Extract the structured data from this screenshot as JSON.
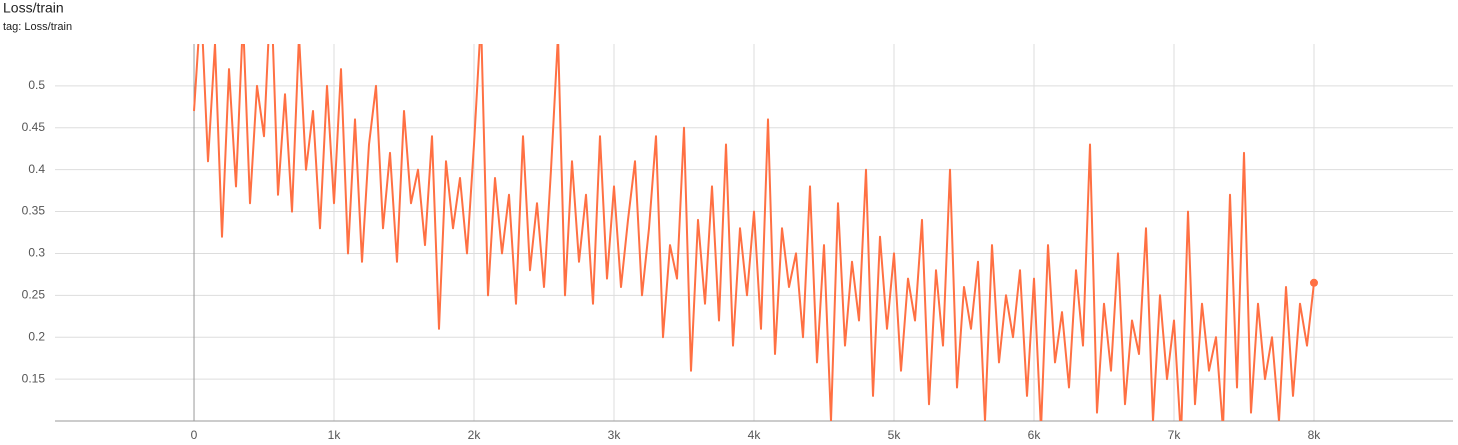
{
  "chart_data": {
    "type": "line",
    "title": "Loss/train",
    "subtitle": "tag: Loss/train",
    "x": [
      0,
      50,
      100,
      150,
      200,
      250,
      300,
      350,
      400,
      450,
      500,
      550,
      600,
      650,
      700,
      750,
      800,
      850,
      900,
      950,
      1000,
      1050,
      1100,
      1150,
      1200,
      1250,
      1300,
      1350,
      1400,
      1450,
      1500,
      1550,
      1600,
      1650,
      1700,
      1750,
      1800,
      1850,
      1900,
      1950,
      2000,
      2050,
      2100,
      2150,
      2200,
      2250,
      2300,
      2350,
      2400,
      2450,
      2500,
      2550,
      2600,
      2650,
      2700,
      2750,
      2800,
      2850,
      2900,
      2950,
      3000,
      3050,
      3100,
      3150,
      3200,
      3250,
      3300,
      3350,
      3400,
      3450,
      3500,
      3550,
      3600,
      3650,
      3700,
      3750,
      3800,
      3850,
      3900,
      3950,
      4000,
      4050,
      4100,
      4150,
      4200,
      4250,
      4300,
      4350,
      4400,
      4450,
      4500,
      4550,
      4600,
      4650,
      4700,
      4750,
      4800,
      4850,
      4900,
      4950,
      5000,
      5050,
      5100,
      5150,
      5200,
      5250,
      5300,
      5350,
      5400,
      5450,
      5500,
      5550,
      5600,
      5650,
      5700,
      5750,
      5800,
      5850,
      5900,
      5950,
      6000,
      6050,
      6100,
      6150,
      6200,
      6250,
      6300,
      6350,
      6400,
      6450,
      6500,
      6550,
      6600,
      6650,
      6700,
      6750,
      6800,
      6850,
      6900,
      6950,
      7000,
      7050,
      7100,
      7150,
      7200,
      7250,
      7300,
      7350,
      7400,
      7450,
      7500,
      7550,
      7600,
      7650,
      7700,
      7750,
      7800,
      7850,
      7900,
      7950,
      8000
    ],
    "series": [
      {
        "color": "#ff7043",
        "values": [
          0.47,
          0.6,
          0.41,
          0.55,
          0.32,
          0.52,
          0.38,
          0.58,
          0.36,
          0.5,
          0.44,
          0.62,
          0.37,
          0.49,
          0.35,
          0.56,
          0.4,
          0.47,
          0.33,
          0.5,
          0.36,
          0.52,
          0.3,
          0.46,
          0.29,
          0.43,
          0.5,
          0.33,
          0.42,
          0.29,
          0.47,
          0.36,
          0.4,
          0.31,
          0.44,
          0.21,
          0.41,
          0.33,
          0.39,
          0.3,
          0.43,
          0.58,
          0.25,
          0.39,
          0.3,
          0.37,
          0.24,
          0.44,
          0.28,
          0.36,
          0.26,
          0.4,
          0.56,
          0.25,
          0.41,
          0.29,
          0.37,
          0.24,
          0.44,
          0.27,
          0.38,
          0.26,
          0.34,
          0.41,
          0.25,
          0.33,
          0.44,
          0.2,
          0.31,
          0.27,
          0.45,
          0.16,
          0.34,
          0.24,
          0.38,
          0.22,
          0.43,
          0.19,
          0.33,
          0.25,
          0.35,
          0.21,
          0.46,
          0.18,
          0.33,
          0.26,
          0.3,
          0.2,
          0.38,
          0.17,
          0.31,
          0.1,
          0.36,
          0.19,
          0.29,
          0.22,
          0.4,
          0.13,
          0.32,
          0.21,
          0.3,
          0.16,
          0.27,
          0.22,
          0.34,
          0.12,
          0.28,
          0.19,
          0.4,
          0.14,
          0.26,
          0.21,
          0.29,
          0.1,
          0.31,
          0.17,
          0.25,
          0.2,
          0.28,
          0.13,
          0.27,
          0.09,
          0.31,
          0.17,
          0.23,
          0.14,
          0.28,
          0.19,
          0.43,
          0.11,
          0.24,
          0.16,
          0.3,
          0.12,
          0.22,
          0.18,
          0.33,
          0.1,
          0.25,
          0.15,
          0.22,
          0.08,
          0.35,
          0.12,
          0.24,
          0.16,
          0.2,
          0.09,
          0.37,
          0.14,
          0.42,
          0.11,
          0.24,
          0.15,
          0.2,
          0.1,
          0.26,
          0.13,
          0.24,
          0.19,
          0.265
        ]
      }
    ],
    "xlim": [
      -993,
      8993
    ],
    "ylim": [
      0.1,
      0.55
    ],
    "xticks": [
      0,
      {
        "value": 1000,
        "label": "1k"
      },
      {
        "value": 2000,
        "label": "2k"
      },
      {
        "value": 3000,
        "label": "3k"
      },
      {
        "value": 4000,
        "label": "4k"
      },
      {
        "value": 5000,
        "label": "5k"
      },
      {
        "value": 6000,
        "label": "6k"
      },
      {
        "value": 7000,
        "label": "7k"
      },
      {
        "value": 8000,
        "label": "8k"
      }
    ],
    "yticks": [
      0.15,
      0.2,
      0.25,
      0.3,
      0.35,
      0.4,
      0.45,
      0.5
    ],
    "grid": true
  }
}
